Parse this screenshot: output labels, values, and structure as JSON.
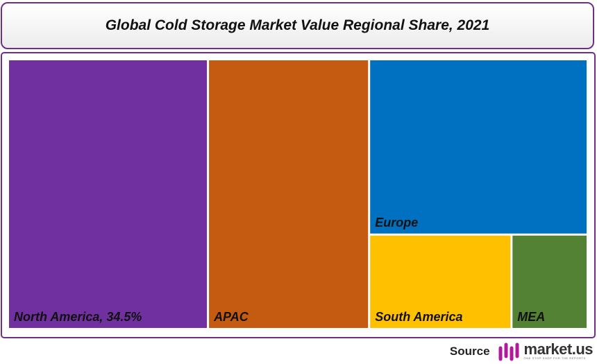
{
  "colors": {
    "frame_border": "#6c2f8f",
    "brand_accent": "#b0199a"
  },
  "chart_data": {
    "type": "treemap",
    "title": "Global Cold Storage Market Value Regional Share, 2021",
    "tiles": [
      {
        "region": "North America",
        "label": "North America, 34.5%",
        "share": 34.5,
        "color": "#7030a0"
      },
      {
        "region": "APAC",
        "label": "APAC",
        "share": 27.8,
        "color": "#c55a11"
      },
      {
        "region": "Europe",
        "label": "Europe",
        "share": 24.5,
        "color": "#0070c0"
      },
      {
        "region": "South America",
        "label": "South America",
        "share": 8.6,
        "color": "#ffc000"
      },
      {
        "region": "MEA",
        "label": "MEA",
        "share": 4.6,
        "color": "#548235"
      }
    ]
  },
  "footer": {
    "source_label": "Source",
    "brand_name": "market.us",
    "brand_tagline": "ONE STOP SHOP FOR THE REPORTS"
  }
}
